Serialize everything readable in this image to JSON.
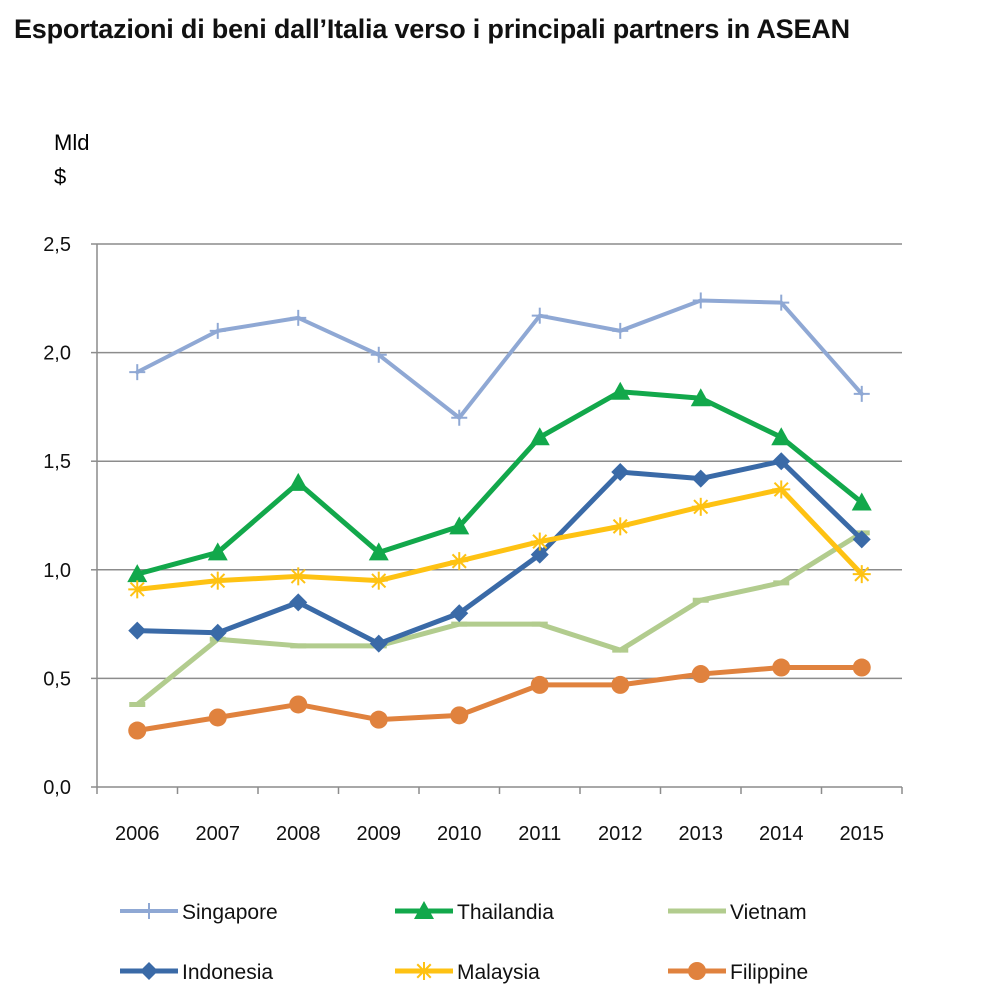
{
  "chart_data": {
    "type": "line",
    "title": "Esportazioni di beni dall’Italia verso i principali partners in ASEAN",
    "ylabel_line1": "Mld",
    "ylabel_line2": "$",
    "xlabel": "",
    "categories": [
      "2006",
      "2007",
      "2008",
      "2009",
      "2010",
      "2011",
      "2012",
      "2013",
      "2014",
      "2015"
    ],
    "ylim": [
      0,
      2.5
    ],
    "yticks": [
      0,
      0.5,
      1.0,
      1.5,
      2.0,
      2.5
    ],
    "ytick_labels": [
      "0,0",
      "0,5",
      "1,0",
      "1,5",
      "2,0",
      "2,5"
    ],
    "grid": true,
    "legend_position": "bottom",
    "series": [
      {
        "name": "Singapore",
        "color": "#8FA8D4",
        "marker": "plus",
        "values": [
          1.91,
          2.1,
          2.16,
          1.99,
          1.7,
          2.17,
          2.1,
          2.24,
          2.23,
          1.81
        ]
      },
      {
        "name": "Thailandia",
        "color": "#12A84B",
        "marker": "triangle",
        "values": [
          0.98,
          1.08,
          1.4,
          1.08,
          1.2,
          1.61,
          1.82,
          1.79,
          1.61,
          1.31
        ]
      },
      {
        "name": "Vietnam",
        "color": "#B2CC8E",
        "marker": "dash",
        "values": [
          0.38,
          0.68,
          0.65,
          0.65,
          0.75,
          0.75,
          0.63,
          0.86,
          0.94,
          1.17
        ]
      },
      {
        "name": "Indonesia",
        "color": "#3A6AA7",
        "marker": "diamond",
        "values": [
          0.72,
          0.71,
          0.85,
          0.66,
          0.8,
          1.07,
          1.45,
          1.42,
          1.5,
          1.14
        ]
      },
      {
        "name": "Malaysia",
        "color": "#FEC213",
        "marker": "star",
        "values": [
          0.91,
          0.95,
          0.97,
          0.95,
          1.04,
          1.13,
          1.2,
          1.29,
          1.37,
          0.98
        ]
      },
      {
        "name": "Filippine",
        "color": "#E0823E",
        "marker": "circle",
        "values": [
          0.26,
          0.32,
          0.38,
          0.31,
          0.33,
          0.47,
          0.47,
          0.52,
          0.55,
          0.55
        ]
      }
    ]
  }
}
